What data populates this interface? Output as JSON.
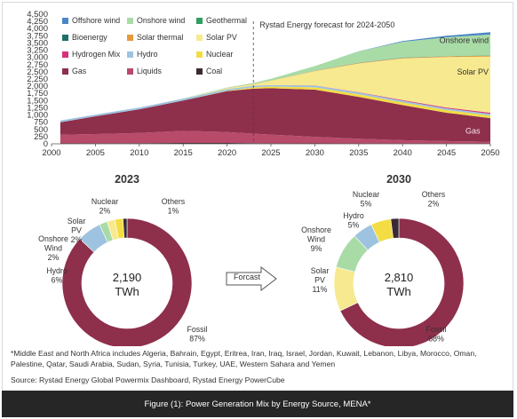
{
  "chart_data": [
    {
      "type": "area",
      "stacked": true,
      "x": [
        2001,
        2005,
        2010,
        2015,
        2020,
        2023,
        2025,
        2030,
        2035,
        2040,
        2045,
        2050
      ],
      "x_ticks": [
        2000,
        2005,
        2010,
        2015,
        2020,
        2025,
        2030,
        2035,
        2040,
        2045,
        2050
      ],
      "y_ticks": [
        0,
        250,
        500,
        750,
        1000,
        1250,
        1500,
        1750,
        2000,
        2250,
        2500,
        2750,
        3000,
        3250,
        3500,
        3750,
        4000,
        4250,
        4500
      ],
      "y_tick_labels": [
        "0",
        "250",
        "500",
        "750",
        "1,000",
        "1,250",
        "1,500",
        "1,750",
        "2,000",
        "2,250",
        "2,500",
        "2,750",
        "3,000",
        "3,250",
        "3,500",
        "3,750",
        "4,000",
        "4,250",
        "4,500"
      ],
      "xlim": [
        2000,
        2050
      ],
      "ylim": [
        0,
        4500
      ],
      "grid": false,
      "forecast_marker_x": 2023,
      "forecast_label": "Rystad Energy forecast for 2024-2050",
      "legend": [
        {
          "name": "Offshore wind",
          "color": "#4a86c5"
        },
        {
          "name": "Onshore wind",
          "color": "#a9dba7"
        },
        {
          "name": "Geothermal",
          "color": "#2f9e61"
        },
        {
          "name": "Bioenergy",
          "color": "#1f6f6a"
        },
        {
          "name": "Solar thermal",
          "color": "#e59a3c"
        },
        {
          "name": "Solar PV",
          "color": "#f7e98f"
        },
        {
          "name": "Hydrogen Mix",
          "color": "#d6317a"
        },
        {
          "name": "Hydro",
          "color": "#9ec3e0"
        },
        {
          "name": "Nuclear",
          "color": "#f3dd43"
        },
        {
          "name": "Gas",
          "color": "#8e2f4c"
        },
        {
          "name": "Liquids",
          "color": "#b84a6a"
        },
        {
          "name": "Coal",
          "color": "#3b2a33"
        }
      ],
      "series": [
        {
          "name": "Coal",
          "color": "#3b2a33",
          "values": [
            15,
            20,
            25,
            30,
            30,
            25,
            20,
            15,
            10,
            5,
            5,
            5
          ]
        },
        {
          "name": "Liquids",
          "color": "#b84a6a",
          "values": [
            300,
            320,
            350,
            420,
            380,
            330,
            300,
            230,
            170,
            120,
            90,
            70
          ]
        },
        {
          "name": "Gas",
          "color": "#8e2f4c",
          "values": [
            435,
            615,
            825,
            1050,
            1420,
            1560,
            1610,
            1635,
            1450,
            1220,
            985,
            815
          ]
        },
        {
          "name": "Nuclear",
          "color": "#f3dd43",
          "values": [
            0,
            0,
            0,
            0,
            10,
            45,
            60,
            80,
            90,
            90,
            90,
            90
          ]
        },
        {
          "name": "Hydro",
          "color": "#9ec3e0",
          "values": [
            60,
            60,
            60,
            65,
            60,
            55,
            55,
            60,
            60,
            60,
            60,
            60
          ]
        },
        {
          "name": "Hydrogen Mix",
          "color": "#d6317a",
          "values": [
            0,
            0,
            0,
            0,
            0,
            0,
            0,
            5,
            10,
            20,
            30,
            40
          ]
        },
        {
          "name": "Solar PV",
          "color": "#f7e98f",
          "values": [
            0,
            0,
            0,
            5,
            30,
            60,
            150,
            500,
            1000,
            1450,
            1750,
            1950
          ]
        },
        {
          "name": "Solar thermal",
          "color": "#e59a3c",
          "values": [
            0,
            0,
            0,
            0,
            2,
            3,
            5,
            10,
            15,
            20,
            25,
            30
          ]
        },
        {
          "name": "Bioenergy",
          "color": "#1f6f6a",
          "values": [
            0,
            0,
            0,
            0,
            2,
            2,
            3,
            5,
            5,
            5,
            5,
            5
          ]
        },
        {
          "name": "Geothermal",
          "color": "#2f9e61",
          "values": [
            0,
            0,
            0,
            0,
            0,
            0,
            0,
            0,
            5,
            5,
            5,
            5
          ]
        },
        {
          "name": "Onshore wind",
          "color": "#a9dba7",
          "values": [
            0,
            0,
            0,
            5,
            20,
            30,
            55,
            160,
            395,
            545,
            655,
            725
          ]
        },
        {
          "name": "Offshore wind",
          "color": "#4a86c5",
          "values": [
            0,
            0,
            0,
            0,
            0,
            0,
            0,
            0,
            5,
            25,
            50,
            80
          ]
        }
      ],
      "area_labels": [
        {
          "text": "Onshore wind",
          "x": 2047,
          "y": 3500
        },
        {
          "text": "Solar PV",
          "x": 2048,
          "y": 2400
        },
        {
          "text": "Gas",
          "x": 2048,
          "y": 350
        }
      ]
    },
    {
      "type": "pie",
      "donut": true,
      "title": "2023",
      "center_value": "2,190",
      "center_unit": "TWh",
      "slices": [
        {
          "label": "Fossil",
          "percent": 87,
          "color": "#8e2f4c"
        },
        {
          "label": "Hydro",
          "percent": 6,
          "color": "#9ec3e0"
        },
        {
          "label": "Onshore Wind",
          "percent": 2,
          "color": "#a9dba7"
        },
        {
          "label": "Solar PV",
          "percent": 2,
          "color": "#f7e98f"
        },
        {
          "label": "Nuclear",
          "percent": 2,
          "color": "#f3dd43"
        },
        {
          "label": "Others",
          "percent": 1,
          "color": "#3b2a33"
        }
      ]
    },
    {
      "type": "pie",
      "donut": true,
      "title": "2030",
      "center_value": "2,810",
      "center_unit": "TWh",
      "slices": [
        {
          "label": "Fossil",
          "percent": 68,
          "color": "#8e2f4c"
        },
        {
          "label": "Solar PV",
          "percent": 11,
          "color": "#f7e98f"
        },
        {
          "label": "Onshore Wind",
          "percent": 9,
          "color": "#a9dba7"
        },
        {
          "label": "Hydro",
          "percent": 5,
          "color": "#9ec3e0"
        },
        {
          "label": "Nuclear",
          "percent": 5,
          "color": "#f3dd43"
        },
        {
          "label": "Others",
          "percent": 2,
          "color": "#3b2a33"
        }
      ]
    }
  ],
  "arrow_label": "Forcast",
  "footnote": "*Middle East and North Africa includes Algeria, Bahrain, Egypt, Eritrea, Iran, Iraq, Israel, Jordan, Kuwait, Lebanon, Libya, Morocco, Oman, Palestine, Qatar, Saudi Arabia, Sudan, Syria, Tunisia, Turkey, UAE, Western Sahara and Yemen",
  "source": "Source: Rystad Energy Global Powermix Dashboard, Rystad Energy PowerCube",
  "caption": "Figure (1): Power Generation Mix by Energy Source, MENA*"
}
